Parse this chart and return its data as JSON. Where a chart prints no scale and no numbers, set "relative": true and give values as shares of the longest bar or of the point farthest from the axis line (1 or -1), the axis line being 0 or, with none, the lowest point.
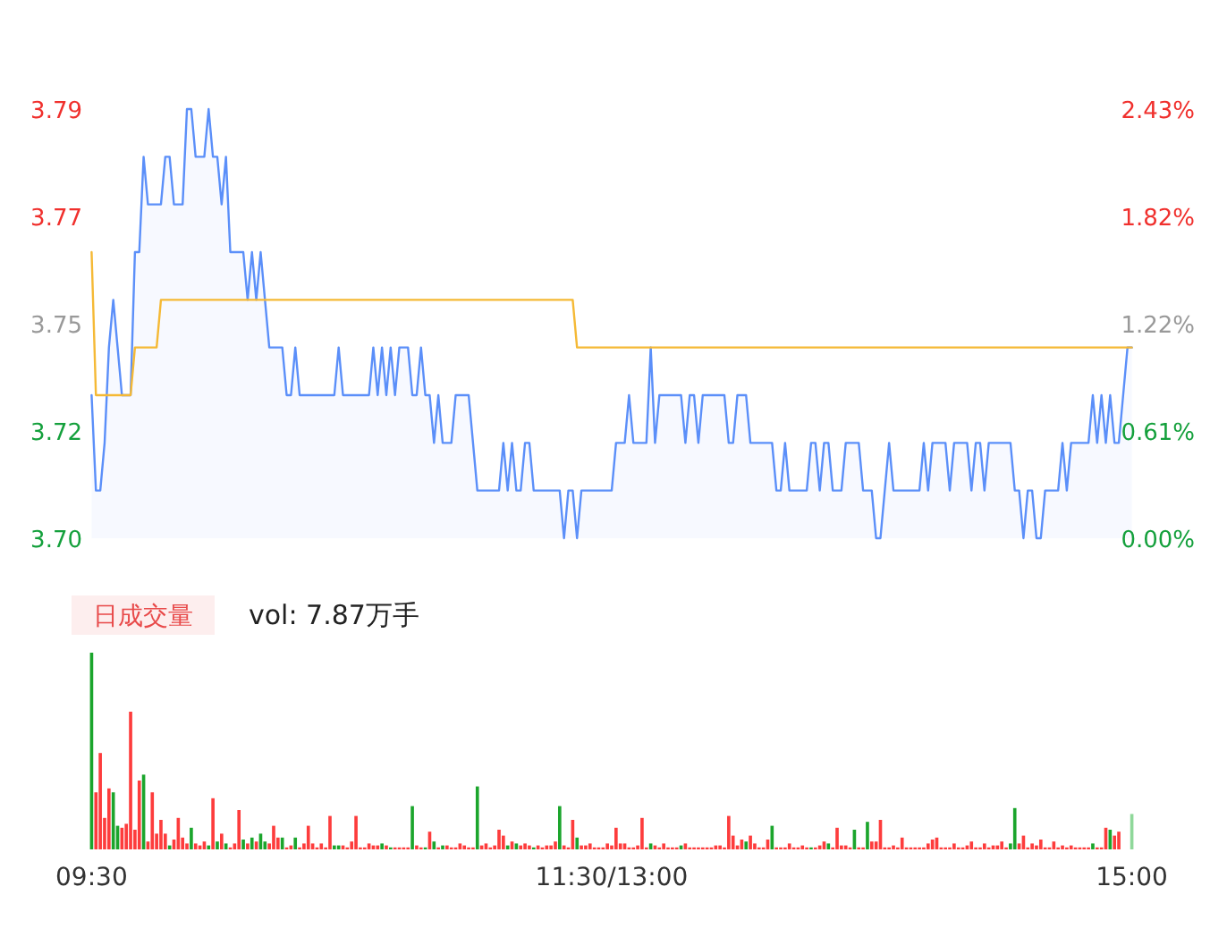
{
  "chart_data": [
    {
      "type": "line",
      "tick_labels": "y",
      "categories": [
        null,
        null,
        null,
        null,
        null,
        null,
        null,
        null,
        null,
        null,
        null,
        null,
        null,
        null,
        null,
        null,
        null,
        null,
        null,
        null,
        null,
        null,
        null,
        null,
        null,
        null,
        null,
        null,
        null,
        null,
        null,
        null,
        null,
        null,
        null,
        null,
        null,
        null,
        null,
        null,
        null,
        null,
        null,
        null,
        null,
        null,
        null,
        null,
        null,
        null,
        null,
        null,
        null,
        null,
        null,
        null,
        null,
        null,
        null,
        null,
        null,
        null,
        null,
        null,
        null,
        null,
        null,
        null,
        null,
        null,
        null,
        null,
        null,
        null,
        null,
        null,
        null,
        null,
        null,
        null,
        null,
        null,
        null,
        null,
        null,
        null,
        null,
        null,
        null,
        null,
        null,
        null,
        null,
        null,
        null,
        null,
        null,
        null,
        null,
        null,
        null,
        null,
        null,
        null,
        null,
        null,
        null,
        null,
        null,
        null,
        null,
        null,
        null,
        null,
        null,
        null,
        null,
        null,
        null,
        null,
        null,
        null,
        null,
        null,
        null,
        null,
        null,
        null,
        null,
        null,
        null,
        null,
        null,
        null,
        null,
        null,
        null,
        null,
        null,
        null,
        null,
        null,
        null,
        null,
        null,
        null,
        null,
        null,
        null,
        null,
        null,
        null,
        null,
        null,
        null,
        null,
        null,
        null,
        null,
        null,
        null,
        null,
        null,
        null,
        null,
        null,
        null,
        null,
        null,
        null,
        null,
        null,
        null,
        null,
        null,
        null,
        null,
        null,
        null,
        null,
        null,
        null,
        null,
        null,
        null,
        null,
        null,
        null,
        null,
        null,
        null,
        null,
        null,
        null,
        null,
        null,
        null,
        null,
        null,
        null,
        null,
        null,
        null,
        null,
        null,
        null,
        null,
        null,
        null,
        null,
        null,
        null,
        null,
        null,
        null,
        null,
        null,
        null,
        null,
        null,
        null,
        null,
        null,
        null,
        null,
        null,
        null,
        null,
        null,
        null,
        null,
        null,
        null,
        null,
        null,
        null,
        null,
        null,
        null,
        null,
        null
      ],
      "ylim": [
        3.7,
        3.79
      ],
      "yticks": [
        {
          "value": 3.7,
          "label": "3.70"
        },
        {
          "value": 3.7225,
          "label": "3.72"
        },
        {
          "value": 3.745,
          "label": "3.75"
        },
        {
          "value": 3.7675,
          "label": "3.77"
        },
        {
          "value": 3.79,
          "label": "3.79"
        }
      ],
      "y2lim": [
        0,
        2.4324
      ],
      "y2ticks": [
        {
          "value": 0,
          "label": "0.00%"
        },
        {
          "value": 0.6081,
          "label": "0.61%"
        },
        {
          "value": 1.2162,
          "label": "1.22%"
        },
        {
          "value": 1.8243,
          "label": "1.82%"
        },
        {
          "value": 2.4324,
          "label": "2.43%"
        }
      ],
      "series": [
        {
          "type": "area",
          "color": "#5b8ff9",
          "values": [
            3.73,
            3.71,
            3.71,
            3.72,
            3.74,
            3.75,
            3.74,
            3.73,
            3.73,
            3.73,
            3.76,
            3.76,
            3.78,
            3.77,
            3.77,
            3.77,
            3.77,
            3.78,
            3.78,
            3.77,
            3.77,
            3.77,
            3.79,
            3.79,
            3.78,
            3.78,
            3.78,
            3.79,
            3.78,
            3.78,
            3.77,
            3.78,
            3.76,
            3.76,
            3.76,
            3.76,
            3.75,
            3.76,
            3.75,
            3.76,
            3.75,
            3.74,
            3.74,
            3.74,
            3.74,
            3.73,
            3.73,
            3.74,
            3.73,
            3.73,
            3.73,
            3.73,
            3.73,
            3.73,
            3.73,
            3.73,
            3.73,
            3.74,
            3.73,
            3.73,
            3.73,
            3.73,
            3.73,
            3.73,
            3.73,
            3.74,
            3.73,
            3.74,
            3.73,
            3.74,
            3.73,
            3.74,
            3.74,
            3.74,
            3.73,
            3.73,
            3.74,
            3.73,
            3.73,
            3.72,
            3.73,
            3.72,
            3.72,
            3.72,
            3.73,
            3.73,
            3.73,
            3.73,
            3.72,
            3.71,
            3.71,
            3.71,
            3.71,
            3.71,
            3.71,
            3.72,
            3.71,
            3.72,
            3.71,
            3.71,
            3.72,
            3.72,
            3.71,
            3.71,
            3.71,
            3.71,
            3.71,
            3.71,
            3.71,
            3.7,
            3.71,
            3.71,
            3.7,
            3.71,
            3.71,
            3.71,
            3.71,
            3.71,
            3.71,
            3.71,
            3.71,
            3.72,
            3.72,
            3.72,
            3.73,
            3.72,
            3.72,
            3.72,
            3.72,
            3.74,
            3.72,
            3.73,
            3.73,
            3.73,
            3.73,
            3.73,
            3.73,
            3.72,
            3.73,
            3.73,
            3.72,
            3.73,
            3.73,
            3.73,
            3.73,
            3.73,
            3.73,
            3.72,
            3.72,
            3.73,
            3.73,
            3.73,
            3.72,
            3.72,
            3.72,
            3.72,
            3.72,
            3.72,
            3.71,
            3.71,
            3.72,
            3.71,
            3.71,
            3.71,
            3.71,
            3.71,
            3.72,
            3.72,
            3.71,
            3.72,
            3.72,
            3.71,
            3.71,
            3.71,
            3.72,
            3.72,
            3.72,
            3.72,
            3.71,
            3.71,
            3.71,
            3.7,
            3.7,
            3.71,
            3.72,
            3.71,
            3.71,
            3.71,
            3.71,
            3.71,
            3.71,
            3.71,
            3.72,
            3.71,
            3.72,
            3.72,
            3.72,
            3.72,
            3.71,
            3.72,
            3.72,
            3.72,
            3.72,
            3.71,
            3.72,
            3.72,
            3.71,
            3.72,
            3.72,
            3.72,
            3.72,
            3.72,
            3.72,
            3.71,
            3.71,
            3.7,
            3.71,
            3.71,
            3.7,
            3.7,
            3.71,
            3.71,
            3.71,
            3.71,
            3.72,
            3.71,
            3.72,
            3.72,
            3.72,
            3.72,
            3.72,
            3.73,
            3.72,
            3.73,
            3.72,
            3.73,
            3.72,
            3.72,
            3.73,
            3.74,
            3.74
          ]
        },
        {
          "type": "line",
          "color": "#f5b935",
          "values": [
            3.76,
            3.73,
            3.73,
            3.73,
            3.73,
            3.73,
            3.73,
            3.73,
            3.73,
            3.73,
            3.74,
            3.74,
            3.74,
            3.74,
            3.74,
            3.74,
            3.75,
            3.75,
            3.75,
            3.75,
            3.75,
            3.75,
            3.75,
            3.75,
            3.75,
            3.75,
            3.75,
            3.75,
            3.75,
            3.75,
            3.75,
            3.75,
            3.75,
            3.75,
            3.75,
            3.75,
            3.75,
            3.75,
            3.75,
            3.75,
            3.75,
            3.75,
            3.75,
            3.75,
            3.75,
            3.75,
            3.75,
            3.75,
            3.75,
            3.75,
            3.75,
            3.75,
            3.75,
            3.75,
            3.75,
            3.75,
            3.75,
            3.75,
            3.75,
            3.75,
            3.75,
            3.75,
            3.75,
            3.75,
            3.75,
            3.75,
            3.75,
            3.75,
            3.75,
            3.75,
            3.75,
            3.75,
            3.75,
            3.75,
            3.75,
            3.75,
            3.75,
            3.75,
            3.75,
            3.75,
            3.75,
            3.75,
            3.75,
            3.75,
            3.75,
            3.75,
            3.75,
            3.75,
            3.75,
            3.75,
            3.75,
            3.75,
            3.75,
            3.75,
            3.75,
            3.75,
            3.75,
            3.75,
            3.75,
            3.75,
            3.75,
            3.75,
            3.75,
            3.75,
            3.75,
            3.75,
            3.75,
            3.75,
            3.75,
            3.75,
            3.75,
            3.75,
            3.74,
            3.74,
            3.74,
            3.74,
            3.74,
            3.74,
            3.74,
            3.74,
            3.74,
            3.74,
            3.74,
            3.74,
            3.74,
            3.74,
            3.74,
            3.74,
            3.74,
            3.74,
            3.74,
            3.74,
            3.74,
            3.74,
            3.74,
            3.74,
            3.74,
            3.74,
            3.74,
            3.74,
            3.74,
            3.74,
            3.74,
            3.74,
            3.74,
            3.74,
            3.74,
            3.74,
            3.74,
            3.74,
            3.74,
            3.74,
            3.74,
            3.74,
            3.74,
            3.74,
            3.74,
            3.74,
            3.74,
            3.74,
            3.74,
            3.74,
            3.74,
            3.74,
            3.74,
            3.74,
            3.74,
            3.74,
            3.74,
            3.74,
            3.74,
            3.74,
            3.74,
            3.74,
            3.74,
            3.74,
            3.74,
            3.74,
            3.74,
            3.74,
            3.74,
            3.74,
            3.74,
            3.74,
            3.74,
            3.74,
            3.74,
            3.74,
            3.74,
            3.74,
            3.74,
            3.74,
            3.74,
            3.74,
            3.74,
            3.74,
            3.74,
            3.74,
            3.74,
            3.74,
            3.74,
            3.74,
            3.74,
            3.74,
            3.74,
            3.74,
            3.74,
            3.74,
            3.74,
            3.74,
            3.74,
            3.74,
            3.74,
            3.74,
            3.74,
            3.74,
            3.74,
            3.74,
            3.74,
            3.74,
            3.74,
            3.74,
            3.74,
            3.74,
            3.74,
            3.74,
            3.74,
            3.74,
            3.74,
            3.74,
            3.74,
            3.74,
            3.74,
            3.74,
            3.74,
            3.74,
            3.74,
            3.74,
            3.74,
            3.74,
            3.74
          ]
        }
      ]
    },
    {
      "type": "bar",
      "title": "日成交量",
      "subtitle": "vol: 7.87万手",
      "relative": true,
      "tick_labels": "x",
      "categories": [
        "09:30",
        null,
        null,
        null,
        null,
        null,
        null,
        null,
        null,
        null,
        null,
        null,
        null,
        null,
        null,
        null,
        null,
        null,
        null,
        null,
        null,
        null,
        null,
        null,
        null,
        null,
        null,
        null,
        null,
        null,
        null,
        null,
        null,
        null,
        null,
        null,
        null,
        null,
        null,
        null,
        null,
        null,
        null,
        null,
        null,
        null,
        null,
        null,
        null,
        null,
        null,
        null,
        null,
        null,
        null,
        null,
        null,
        null,
        null,
        null,
        null,
        null,
        null,
        null,
        null,
        null,
        null,
        null,
        null,
        null,
        null,
        null,
        null,
        null,
        null,
        null,
        null,
        null,
        null,
        null,
        null,
        null,
        null,
        null,
        null,
        null,
        null,
        null,
        null,
        null,
        null,
        null,
        null,
        null,
        null,
        null,
        null,
        null,
        null,
        null,
        null,
        null,
        null,
        null,
        null,
        null,
        null,
        null,
        null,
        null,
        null,
        null,
        null,
        null,
        null,
        null,
        null,
        null,
        null,
        null,
        "11:30/13:00",
        null,
        null,
        null,
        null,
        null,
        null,
        null,
        null,
        null,
        null,
        null,
        null,
        null,
        null,
        null,
        null,
        null,
        null,
        null,
        null,
        null,
        null,
        null,
        null,
        null,
        null,
        null,
        null,
        null,
        null,
        null,
        null,
        null,
        null,
        null,
        null,
        null,
        null,
        null,
        null,
        null,
        null,
        null,
        null,
        null,
        null,
        null,
        null,
        null,
        null,
        null,
        null,
        null,
        null,
        null,
        null,
        null,
        null,
        null,
        null,
        null,
        null,
        null,
        null,
        null,
        null,
        null,
        null,
        null,
        null,
        null,
        null,
        null,
        null,
        null,
        null,
        null,
        null,
        null,
        null,
        null,
        null,
        null,
        null,
        null,
        null,
        null,
        null,
        null,
        null,
        null,
        null,
        null,
        null,
        null,
        null,
        null,
        null,
        null,
        null,
        null,
        null,
        null,
        null,
        null,
        null,
        null,
        null,
        null,
        null,
        null,
        null,
        null,
        null,
        null,
        null,
        null,
        null,
        null,
        "15:00"
      ],
      "values": [
        1.0,
        0.29,
        0.49,
        0.16,
        0.31,
        0.29,
        0.12,
        0.11,
        0.13,
        0.7,
        0.1,
        0.35,
        0.38,
        0.04,
        0.29,
        0.08,
        0.15,
        0.08,
        0.02,
        0.05,
        0.16,
        0.06,
        0.03,
        0.11,
        0.03,
        0.02,
        0.04,
        0.02,
        0.26,
        0.04,
        0.08,
        0.03,
        0.01,
        0.03,
        0.2,
        0.05,
        0.03,
        0.06,
        0.04,
        0.08,
        0.04,
        0.03,
        0.12,
        0.06,
        0.06,
        0.01,
        0.02,
        0.06,
        0.01,
        0.03,
        0.12,
        0.03,
        0.01,
        0.03,
        0.01,
        0.17,
        0.02,
        0.02,
        0.02,
        0.01,
        0.04,
        0.17,
        0.01,
        0.01,
        0.03,
        0.02,
        0.02,
        0.03,
        0.02,
        0.01,
        0.01,
        0.01,
        0.01,
        0.01,
        0.22,
        0.02,
        0.01,
        0.01,
        0.09,
        0.04,
        0.01,
        0.02,
        0.02,
        0.01,
        0.01,
        0.03,
        0.02,
        0.01,
        0.01,
        0.32,
        0.02,
        0.03,
        0.01,
        0.02,
        0.1,
        0.07,
        0.02,
        0.04,
        0.03,
        0.02,
        0.03,
        0.02,
        0.01,
        0.02,
        0.01,
        0.02,
        0.02,
        0.04,
        0.22,
        0.02,
        0.01,
        0.15,
        0.06,
        0.02,
        0.02,
        0.03,
        0.01,
        0.01,
        0.01,
        0.03,
        0.02,
        0.11,
        0.03,
        0.03,
        0.01,
        0.01,
        0.02,
        0.16,
        0.01,
        0.03,
        0.02,
        0.01,
        0.03,
        0.01,
        0.01,
        0.01,
        0.02,
        0.03,
        0.01,
        0.01,
        0.01,
        0.01,
        0.01,
        0.01,
        0.02,
        0.02,
        0.01,
        0.17,
        0.07,
        0.02,
        0.05,
        0.04,
        0.07,
        0.03,
        0.01,
        0.01,
        0.05,
        0.12,
        0.01,
        0.01,
        0.01,
        0.03,
        0.01,
        0.01,
        0.02,
        0.01,
        0.01,
        0.01,
        0.02,
        0.04,
        0.03,
        0.01,
        0.11,
        0.02,
        0.02,
        0.01,
        0.1,
        0.01,
        0.01,
        0.14,
        0.04,
        0.04,
        0.15,
        0.01,
        0.01,
        0.02,
        0.01,
        0.06,
        0.01,
        0.01,
        0.01,
        0.01,
        0.01,
        0.03,
        0.05,
        0.06,
        0.01,
        0.01,
        0.01,
        0.03,
        0.01,
        0.01,
        0.02,
        0.04,
        0.01,
        0.01,
        0.03,
        0.01,
        0.02,
        0.02,
        0.04,
        0.01,
        0.03,
        0.21,
        0.03,
        0.07,
        0.01,
        0.03,
        0.02,
        0.05,
        0.01,
        0.01,
        0.04,
        0.01,
        0.02,
        0.01,
        0.02,
        0.01,
        0.01,
        0.01,
        0.01,
        0.03,
        0.01,
        0.01,
        0.11,
        0.1,
        0.07,
        0.09,
        null,
        null,
        0.18
      ],
      "colors": [
        "#1ba52c",
        "#fd3c3c",
        "#fd3c3c",
        "#fd3c3c",
        "#fd3c3c",
        "#1ba52c",
        "#1ba52c",
        "#fd3c3c",
        "#fd3c3c",
        "#fd3c3c",
        "#fd3c3c",
        "#fd3c3c",
        "#1ba52c",
        "#fd3c3c",
        "#fd3c3c",
        "#fd3c3c",
        "#fd3c3c",
        "#fd3c3c",
        "#1ba52c",
        "#fd3c3c",
        "#fd3c3c",
        "#fd3c3c",
        "#fd3c3c",
        "#1ba52c",
        "#fd3c3c",
        "#fd3c3c",
        "#fd3c3c",
        "#1ba52c",
        "#fd3c3c",
        "#1ba52c",
        "#fd3c3c",
        "#1ba52c",
        "#fd3c3c",
        "#fd3c3c",
        "#fd3c3c",
        "#1ba52c",
        "#fd3c3c",
        "#1ba52c",
        "#fd3c3c",
        "#1ba52c",
        "#1ba52c",
        "#fd3c3c",
        "#fd3c3c",
        "#fd3c3c",
        "#1ba52c",
        "#fd3c3c",
        "#fd3c3c",
        "#1ba52c",
        "#fd3c3c",
        "#fd3c3c",
        "#fd3c3c",
        "#fd3c3c",
        "#fd3c3c",
        "#fd3c3c",
        "#fd3c3c",
        "#fd3c3c",
        "#1ba52c",
        "#1ba52c",
        "#fd3c3c",
        "#fd3c3c",
        "#fd3c3c",
        "#fd3c3c",
        "#fd3c3c",
        "#fd3c3c",
        "#fd3c3c",
        "#fd3c3c",
        "#fd3c3c",
        "#1ba52c",
        "#fd3c3c",
        "#1ba52c",
        "#fd3c3c",
        "#fd3c3c",
        "#fd3c3c",
        "#fd3c3c",
        "#1ba52c",
        "#fd3c3c",
        "#fd3c3c",
        "#1ba52c",
        "#fd3c3c",
        "#1ba52c",
        "#fd3c3c",
        "#1ba52c",
        "#fd3c3c",
        "#fd3c3c",
        "#fd3c3c",
        "#fd3c3c",
        "#fd3c3c",
        "#fd3c3c",
        "#fd3c3c",
        "#1ba52c",
        "#fd3c3c",
        "#fd3c3c",
        "#fd3c3c",
        "#fd3c3c",
        "#fd3c3c",
        "#fd3c3c",
        "#1ba52c",
        "#fd3c3c",
        "#1ba52c",
        "#fd3c3c",
        "#fd3c3c",
        "#fd3c3c",
        "#1ba52c",
        "#fd3c3c",
        "#fd3c3c",
        "#fd3c3c",
        "#fd3c3c",
        "#fd3c3c",
        "#1ba52c",
        "#fd3c3c",
        "#fd3c3c",
        "#fd3c3c",
        "#1ba52c",
        "#fd3c3c",
        "#fd3c3c",
        "#fd3c3c",
        "#fd3c3c",
        "#fd3c3c",
        "#fd3c3c",
        "#fd3c3c",
        "#fd3c3c",
        "#fd3c3c",
        "#fd3c3c",
        "#fd3c3c",
        "#fd3c3c",
        "#fd3c3c",
        "#fd3c3c",
        "#fd3c3c",
        "#fd3c3c",
        "#1ba52c",
        "#fd3c3c",
        "#fd3c3c",
        "#fd3c3c",
        "#fd3c3c",
        "#fd3c3c",
        "#fd3c3c",
        "#1ba52c",
        "#fd3c3c",
        "#fd3c3c",
        "#fd3c3c",
        "#fd3c3c",
        "#fd3c3c",
        "#fd3c3c",
        "#fd3c3c",
        "#fd3c3c",
        "#fd3c3c",
        "#fd3c3c",
        "#fd3c3c",
        "#fd3c3c",
        "#fd3c3c",
        "#fd3c3c",
        "#1ba52c",
        "#fd3c3c",
        "#fd3c3c",
        "#fd3c3c",
        "#fd3c3c",
        "#fd3c3c",
        "#1ba52c",
        "#fd3c3c",
        "#fd3c3c",
        "#fd3c3c",
        "#fd3c3c",
        "#fd3c3c",
        "#fd3c3c",
        "#fd3c3c",
        "#fd3c3c",
        "#1ba52c",
        "#fd3c3c",
        "#fd3c3c",
        "#fd3c3c",
        "#1ba52c",
        "#fd3c3c",
        "#fd3c3c",
        "#fd3c3c",
        "#fd3c3c",
        "#fd3c3c",
        "#1ba52c",
        "#fd3c3c",
        "#fd3c3c",
        "#1ba52c",
        "#fd3c3c",
        "#fd3c3c",
        "#fd3c3c",
        "#fd3c3c",
        "#fd3c3c",
        "#fd3c3c",
        "#fd3c3c",
        "#fd3c3c",
        "#fd3c3c",
        "#fd3c3c",
        "#fd3c3c",
        "#fd3c3c",
        "#fd3c3c",
        "#fd3c3c",
        "#fd3c3c",
        "#fd3c3c",
        "#fd3c3c",
        "#fd3c3c",
        "#fd3c3c",
        "#fd3c3c",
        "#fd3c3c",
        "#fd3c3c",
        "#fd3c3c",
        "#fd3c3c",
        "#fd3c3c",
        "#fd3c3c",
        "#fd3c3c",
        "#fd3c3c",
        "#fd3c3c",
        "#fd3c3c",
        "#fd3c3c",
        "#fd3c3c",
        "#1ba52c",
        "#1ba52c",
        "#fd3c3c",
        "#fd3c3c",
        "#fd3c3c",
        "#fd3c3c",
        "#fd3c3c",
        "#fd3c3c",
        "#fd3c3c",
        "#fd3c3c",
        "#fd3c3c",
        "#fd3c3c",
        "#fd3c3c",
        "#fd3c3c",
        "#fd3c3c",
        "#fd3c3c",
        "#fd3c3c",
        "#fd3c3c",
        "#fd3c3c",
        "#1ba52c",
        "#fd3c3c",
        "#fd3c3c",
        "#fd3c3c",
        "#1ba52c",
        "#fd3c3c",
        "#fd3c3c",
        null,
        null,
        "#8fd89a"
      ]
    }
  ]
}
